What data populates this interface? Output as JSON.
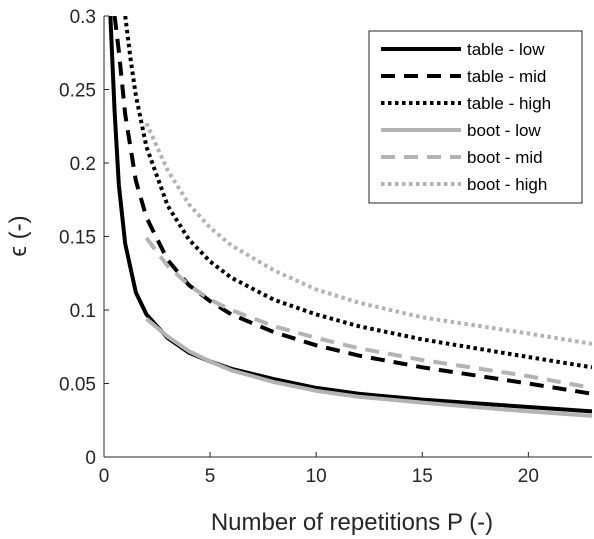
{
  "chart_data": {
    "type": "line",
    "title": "",
    "xlabel": "Number of repetitions P (-)",
    "ylabel": "ϵ (-)",
    "xlim": [
      0,
      23
    ],
    "ylim": [
      0,
      0.3
    ],
    "xticks": [
      0,
      5,
      10,
      15,
      20
    ],
    "yticks": [
      0,
      0.05,
      0.1,
      0.15,
      0.2,
      0.25,
      0.3
    ],
    "xtick_labels": [
      "0",
      "5",
      "10",
      "15",
      "20"
    ],
    "ytick_labels": [
      "0",
      "0.05",
      "0.1",
      "0.15",
      "0.2",
      "0.25",
      "0.3"
    ],
    "grid": false,
    "legend_position": "top-right",
    "series": [
      {
        "name": "table - low",
        "color": "#000000",
        "dash": "solid",
        "x": [
          0.3,
          0.5,
          0.7,
          1.0,
          1.5,
          2.0,
          3.0,
          4.0,
          5.0,
          6.0,
          8.0,
          10.0,
          12.0,
          15.0,
          20.0,
          23.0
        ],
        "y": [
          0.3,
          0.235,
          0.185,
          0.145,
          0.112,
          0.097,
          0.081,
          0.071,
          0.065,
          0.06,
          0.053,
          0.047,
          0.043,
          0.039,
          0.034,
          0.031
        ]
      },
      {
        "name": "table - mid",
        "color": "#000000",
        "dash": "dashed",
        "x": [
          0.5,
          0.7,
          1.0,
          1.5,
          2.0,
          3.0,
          4.0,
          5.0,
          6.0,
          8.0,
          10.0,
          12.0,
          15.0,
          20.0,
          23.0
        ],
        "y": [
          0.3,
          0.276,
          0.233,
          0.188,
          0.163,
          0.134,
          0.117,
          0.106,
          0.097,
          0.085,
          0.076,
          0.069,
          0.061,
          0.05,
          0.043
        ]
      },
      {
        "name": "table - high",
        "color": "#000000",
        "dash": "dotted",
        "x": [
          1.0,
          1.25,
          1.5,
          2.0,
          3.0,
          4.0,
          5.0,
          6.0,
          8.0,
          10.0,
          12.0,
          15.0,
          20.0,
          23.0
        ],
        "y": [
          0.3,
          0.271,
          0.246,
          0.211,
          0.171,
          0.148,
          0.133,
          0.122,
          0.107,
          0.097,
          0.089,
          0.08,
          0.068,
          0.061
        ]
      },
      {
        "name": "boot - low",
        "color": "#b3b3b3",
        "dash": "solid",
        "x": [
          2.0,
          3.0,
          4.0,
          5.0,
          6.0,
          8.0,
          10.0,
          12.0,
          15.0,
          20.0,
          23.0
        ],
        "y": [
          0.094,
          0.082,
          0.072,
          0.065,
          0.059,
          0.051,
          0.045,
          0.041,
          0.037,
          0.031,
          0.028
        ]
      },
      {
        "name": "boot - mid",
        "color": "#b3b3b3",
        "dash": "dashed",
        "x": [
          2.0,
          3.0,
          4.0,
          5.0,
          6.0,
          8.0,
          10.0,
          12.0,
          15.0,
          20.0,
          23.0
        ],
        "y": [
          0.149,
          0.13,
          0.117,
          0.107,
          0.1,
          0.089,
          0.081,
          0.074,
          0.066,
          0.055,
          0.047
        ]
      },
      {
        "name": "boot - high",
        "color": "#b3b3b3",
        "dash": "dotted",
        "x": [
          2.0,
          3.0,
          4.0,
          5.0,
          6.0,
          8.0,
          10.0,
          12.0,
          15.0,
          20.0,
          23.0
        ],
        "y": [
          0.227,
          0.195,
          0.172,
          0.156,
          0.144,
          0.127,
          0.114,
          0.105,
          0.095,
          0.084,
          0.077
        ]
      }
    ]
  }
}
